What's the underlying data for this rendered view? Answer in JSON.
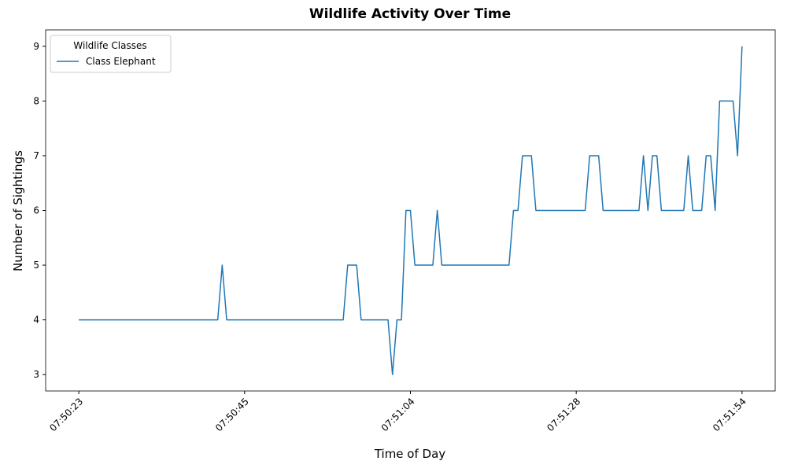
{
  "chart_data": {
    "type": "line",
    "title": "Wildlife Activity Over Time",
    "x_label": "Time of Day",
    "y_label": "Number of Sightings",
    "legend_title": "Wildlife Classes",
    "legend_position": "upper left",
    "categories": [
      "07:50:23",
      null,
      null,
      null,
      null,
      null,
      null,
      null,
      null,
      null,
      null,
      null,
      null,
      null,
      null,
      null,
      null,
      null,
      null,
      null,
      null,
      null,
      null,
      null,
      null,
      null,
      null,
      null,
      null,
      null,
      null,
      null,
      null,
      null,
      null,
      null,
      null,
      "07:50:45",
      null,
      null,
      null,
      null,
      null,
      null,
      null,
      null,
      null,
      null,
      null,
      null,
      null,
      null,
      null,
      null,
      null,
      null,
      null,
      null,
      null,
      null,
      null,
      null,
      null,
      null,
      null,
      null,
      null,
      null,
      null,
      null,
      null,
      null,
      null,
      null,
      "07:51:04",
      null,
      null,
      null,
      null,
      null,
      null,
      null,
      null,
      null,
      null,
      null,
      null,
      null,
      null,
      null,
      null,
      null,
      null,
      null,
      null,
      null,
      null,
      null,
      null,
      null,
      null,
      null,
      null,
      null,
      null,
      null,
      null,
      null,
      null,
      null,
      null,
      "07:51:28",
      null,
      null,
      null,
      null,
      null,
      null,
      null,
      null,
      null,
      null,
      null,
      null,
      null,
      null,
      null,
      null,
      null,
      null,
      null,
      null,
      null,
      null,
      null,
      null,
      null,
      null,
      null,
      null,
      null,
      null,
      null,
      null,
      null,
      null,
      null,
      null,
      "07:51:54"
    ],
    "series": [
      {
        "name": "Class Elephant",
        "color": "#1f77b4",
        "values": [
          4,
          4,
          4,
          4,
          4,
          4,
          4,
          4,
          4,
          4,
          4,
          4,
          4,
          4,
          4,
          4,
          4,
          4,
          4,
          4,
          4,
          4,
          4,
          4,
          4,
          4,
          4,
          4,
          4,
          4,
          4,
          4,
          5,
          4,
          4,
          4,
          4,
          4,
          4,
          4,
          4,
          4,
          4,
          4,
          4,
          4,
          4,
          4,
          4,
          4,
          4,
          4,
          4,
          4,
          4,
          4,
          4,
          4,
          4,
          4,
          5,
          5,
          5,
          4,
          4,
          4,
          4,
          4,
          4,
          4,
          3,
          4,
          4,
          6,
          6,
          5,
          5,
          5,
          5,
          5,
          6,
          5,
          5,
          5,
          5,
          5,
          5,
          5,
          5,
          5,
          5,
          5,
          5,
          5,
          5,
          5,
          5,
          6,
          6,
          7,
          7,
          7,
          6,
          6,
          6,
          6,
          6,
          6,
          6,
          6,
          6,
          6,
          6,
          6,
          7,
          7,
          7,
          6,
          6,
          6,
          6,
          6,
          6,
          6,
          6,
          6,
          7,
          6,
          7,
          7,
          6,
          6,
          6,
          6,
          6,
          6,
          7,
          6,
          6,
          6,
          7,
          7,
          6,
          8,
          8,
          8,
          8,
          7,
          9
        ]
      }
    ],
    "ylim": [
      2.7,
      9.3
    ],
    "yticks": [
      3,
      4,
      5,
      6,
      7,
      8,
      9
    ]
  }
}
